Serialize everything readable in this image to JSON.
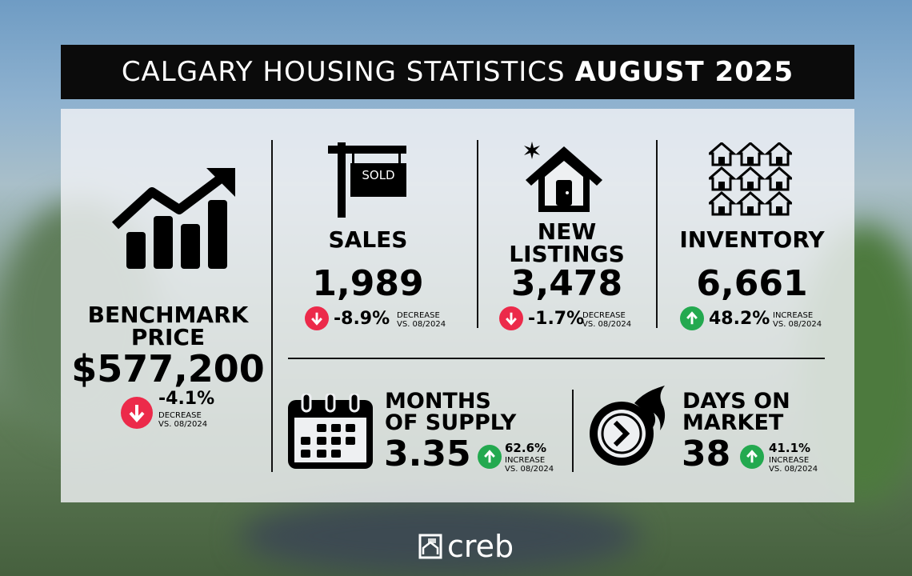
{
  "title": {
    "prefix": "CALGARY HOUSING STATISTICS",
    "month": "AUGUST 2025"
  },
  "benchmark": {
    "label1": "BENCHMARK",
    "label2": "PRICE",
    "value": "$577,200",
    "change": "-4.1%",
    "direction": "DECREASE",
    "compare": "VS. 08/2024",
    "icon": "rising-bar-chart-icon"
  },
  "sales": {
    "label": "SALES",
    "value": "1,989",
    "change": "-8.9%",
    "direction": "DECREASE",
    "compare": "VS. 08/2024",
    "sign_text": "SOLD",
    "icon": "sold-sign-icon"
  },
  "new_listings": {
    "label1": "NEW",
    "label2": "LISTINGS",
    "value": "3,478",
    "change": "-1.7%",
    "direction": "DECREASE",
    "compare": "VS. 08/2024",
    "icon": "new-house-icon"
  },
  "inventory": {
    "label": "INVENTORY",
    "value": "6,661",
    "change": "48.2%",
    "direction": "INCREASE",
    "compare": "VS. 08/2024",
    "icon": "houses-grid-icon"
  },
  "months_supply": {
    "label1": "MONTHS",
    "label2": "OF SUPPLY",
    "value": "3.35",
    "change": "62.6%",
    "direction": "INCREASE",
    "compare": "VS. 08/2024",
    "icon": "calendar-icon"
  },
  "days_on_market": {
    "label1": "DAYS ON",
    "label2": "MARKET",
    "value": "38",
    "change": "41.1%",
    "direction": "INCREASE",
    "compare": "VS. 08/2024",
    "icon": "fast-clock-icon"
  },
  "colors": {
    "decrease": "#ec2a4a",
    "increase": "#23a94f"
  },
  "logo": {
    "text": "creb"
  }
}
